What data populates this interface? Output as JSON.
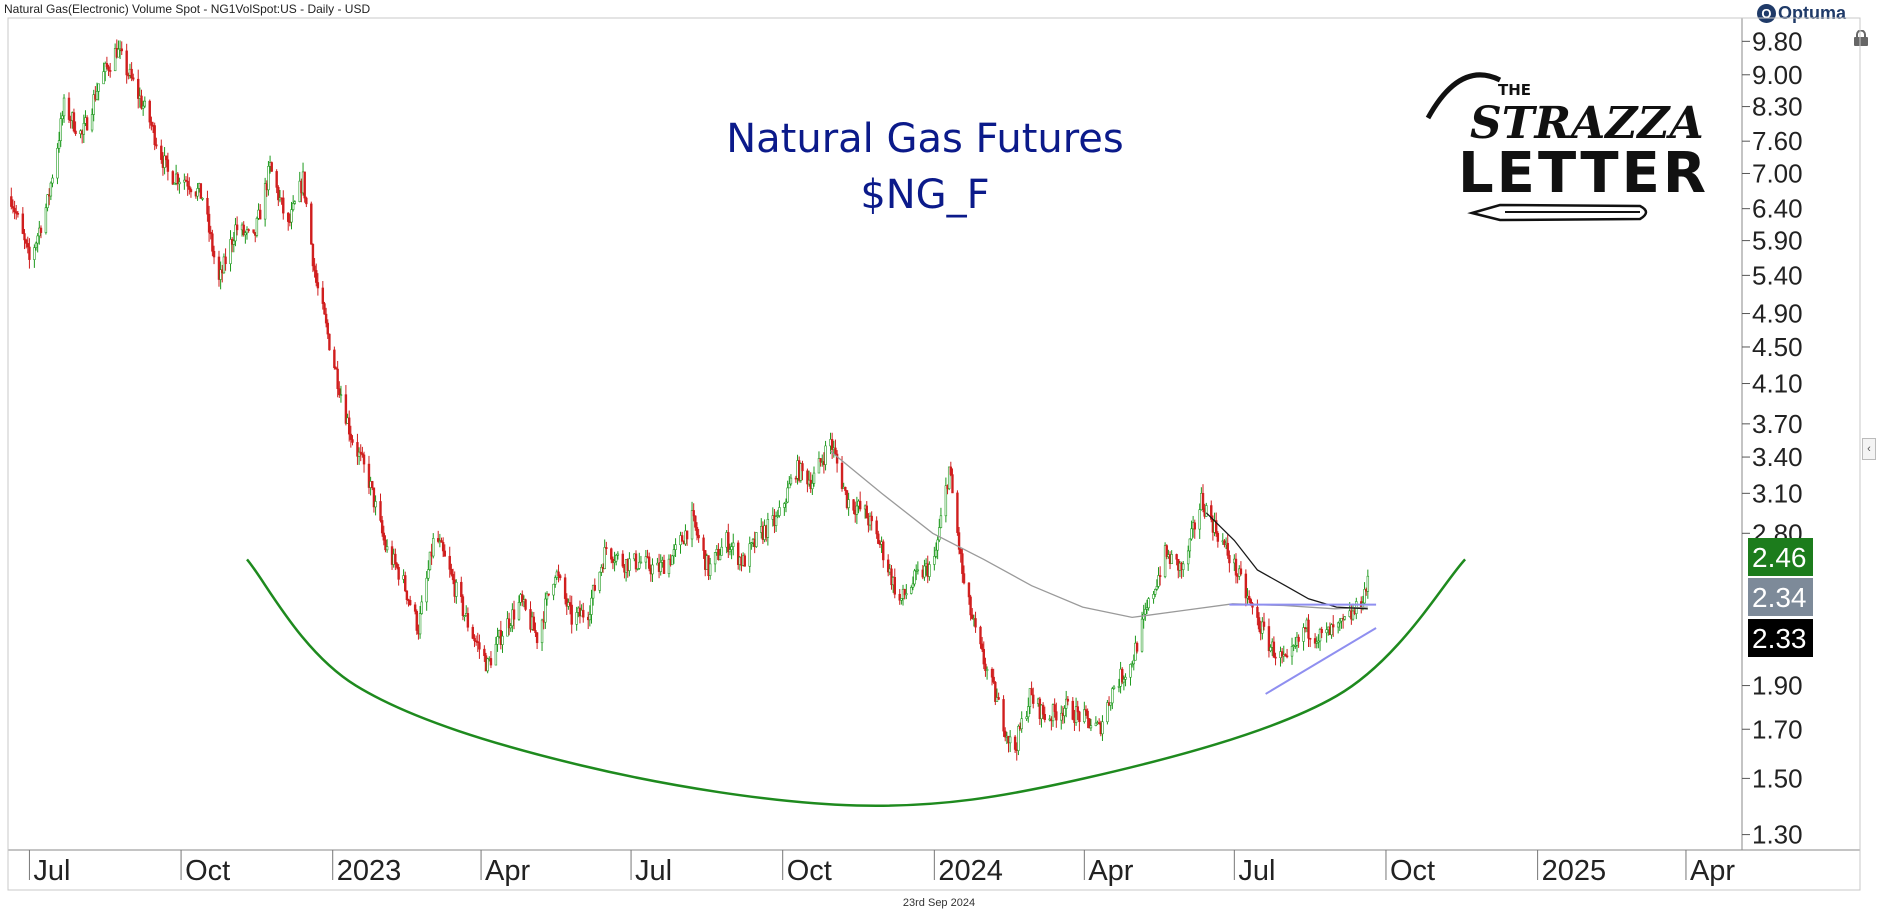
{
  "header": {
    "title": "Natural Gas(Electronic) Volume Spot - NG1VolSpot:US - Daily - USD"
  },
  "brand": {
    "name": "Optuma",
    "mark": "O"
  },
  "logo": {
    "line1": "THE",
    "line2": "STRAZZA",
    "line3": "LETTER"
  },
  "footer": {
    "date": "23rd Sep 2024"
  },
  "chart_data": {
    "type": "candlestick",
    "title": "Natural Gas Futures",
    "subtitle": "$NG_F",
    "y_scale": "log",
    "ylim": [
      1.25,
      10.4
    ],
    "y_ticks": [
      {
        "v": 9.8,
        "label": "9.80"
      },
      {
        "v": 9.0,
        "label": "9.00"
      },
      {
        "v": 8.3,
        "label": "8.30"
      },
      {
        "v": 7.6,
        "label": "7.60"
      },
      {
        "v": 7.0,
        "label": "7.00"
      },
      {
        "v": 6.4,
        "label": "6.40"
      },
      {
        "v": 5.9,
        "label": "5.90"
      },
      {
        "v": 5.4,
        "label": "5.40"
      },
      {
        "v": 4.9,
        "label": "4.90"
      },
      {
        "v": 4.5,
        "label": "4.50"
      },
      {
        "v": 4.1,
        "label": "4.10"
      },
      {
        "v": 3.7,
        "label": "3.70"
      },
      {
        "v": 3.4,
        "label": "3.40"
      },
      {
        "v": 3.1,
        "label": "3.10"
      },
      {
        "v": 2.8,
        "label": "2.80"
      },
      {
        "v": 1.9,
        "label": "1.90"
      },
      {
        "v": 1.7,
        "label": "1.70"
      },
      {
        "v": 1.5,
        "label": "1.50"
      },
      {
        "v": 1.3,
        "label": "1.30"
      }
    ],
    "x_ticks": [
      {
        "date": "2022-07-01",
        "label": "Jul"
      },
      {
        "date": "2022-10-01",
        "label": "Oct"
      },
      {
        "date": "2023-01-01",
        "label": "2023"
      },
      {
        "date": "2023-04-01",
        "label": "Apr"
      },
      {
        "date": "2023-07-01",
        "label": "Jul"
      },
      {
        "date": "2023-10-01",
        "label": "Oct"
      },
      {
        "date": "2024-01-01",
        "label": "2024"
      },
      {
        "date": "2024-04-01",
        "label": "Apr"
      },
      {
        "date": "2024-07-01",
        "label": "Jul"
      },
      {
        "date": "2024-10-01",
        "label": "Oct"
      },
      {
        "date": "2025-01-01",
        "label": "2025"
      },
      {
        "date": "2025-04-01",
        "label": "Apr"
      }
    ],
    "xlim": [
      "2022-06-18",
      "2025-05-05"
    ],
    "price_path": [
      [
        "2022-06-20",
        6.6
      ],
      [
        "2022-07-01",
        5.6
      ],
      [
        "2022-07-12",
        6.5
      ],
      [
        "2022-07-22",
        8.3
      ],
      [
        "2022-08-02",
        7.7
      ],
      [
        "2022-08-12",
        8.8
      ],
      [
        "2022-08-23",
        9.6
      ],
      [
        "2022-09-02",
        8.8
      ],
      [
        "2022-09-12",
        8.0
      ],
      [
        "2022-09-23",
        7.0
      ],
      [
        "2022-10-04",
        6.9
      ],
      [
        "2022-10-14",
        6.6
      ],
      [
        "2022-10-24",
        5.3
      ],
      [
        "2022-11-03",
        6.1
      ],
      [
        "2022-11-14",
        5.9
      ],
      [
        "2022-11-24",
        7.1
      ],
      [
        "2022-12-05",
        6.1
      ],
      [
        "2022-12-14",
        6.9
      ],
      [
        "2022-12-22",
        5.3
      ],
      [
        "2023-01-02",
        4.3
      ],
      [
        "2023-01-12",
        3.6
      ],
      [
        "2023-01-23",
        3.2
      ],
      [
        "2023-02-02",
        2.7
      ],
      [
        "2023-02-12",
        2.5
      ],
      [
        "2023-02-22",
        2.2
      ],
      [
        "2023-03-04",
        2.8
      ],
      [
        "2023-03-14",
        2.5
      ],
      [
        "2023-03-25",
        2.2
      ],
      [
        "2023-04-05",
        2.0
      ],
      [
        "2023-04-15",
        2.2
      ],
      [
        "2023-04-25",
        2.35
      ],
      [
        "2023-05-05",
        2.15
      ],
      [
        "2023-05-16",
        2.55
      ],
      [
        "2023-05-26",
        2.25
      ],
      [
        "2023-06-05",
        2.3
      ],
      [
        "2023-06-16",
        2.7
      ],
      [
        "2023-06-26",
        2.6
      ],
      [
        "2023-07-07",
        2.6
      ],
      [
        "2023-07-17",
        2.55
      ],
      [
        "2023-07-27",
        2.65
      ],
      [
        "2023-08-07",
        2.9
      ],
      [
        "2023-08-17",
        2.55
      ],
      [
        "2023-08-28",
        2.75
      ],
      [
        "2023-09-07",
        2.6
      ],
      [
        "2023-09-18",
        2.8
      ],
      [
        "2023-09-28",
        2.9
      ],
      [
        "2023-10-09",
        3.3
      ],
      [
        "2023-10-19",
        3.2
      ],
      [
        "2023-10-30",
        3.55
      ],
      [
        "2023-11-09",
        3.05
      ],
      [
        "2023-11-20",
        2.95
      ],
      [
        "2023-11-30",
        2.7
      ],
      [
        "2023-12-11",
        2.35
      ],
      [
        "2023-12-21",
        2.5
      ],
      [
        "2024-01-01",
        2.6
      ],
      [
        "2024-01-10",
        3.3
      ],
      [
        "2024-01-19",
        2.45
      ],
      [
        "2024-01-28",
        2.1
      ],
      [
        "2024-02-07",
        1.85
      ],
      [
        "2024-02-18",
        1.6
      ],
      [
        "2024-02-28",
        1.85
      ],
      [
        "2024-03-09",
        1.75
      ],
      [
        "2024-03-20",
        1.8
      ],
      [
        "2024-03-31",
        1.75
      ],
      [
        "2024-04-10",
        1.7
      ],
      [
        "2024-04-19",
        1.9
      ],
      [
        "2024-04-29",
        2.0
      ],
      [
        "2024-05-09",
        2.3
      ],
      [
        "2024-05-20",
        2.65
      ],
      [
        "2024-05-31",
        2.55
      ],
      [
        "2024-06-11",
        3.05
      ],
      [
        "2024-06-21",
        2.8
      ],
      [
        "2024-07-02",
        2.55
      ],
      [
        "2024-07-12",
        2.3
      ],
      [
        "2024-07-23",
        2.1
      ],
      [
        "2024-08-02",
        2.0
      ],
      [
        "2024-08-13",
        2.2
      ],
      [
        "2024-08-23",
        2.15
      ],
      [
        "2024-09-03",
        2.2
      ],
      [
        "2024-09-13",
        2.3
      ],
      [
        "2024-09-20",
        2.46
      ]
    ],
    "moving_averages": [
      {
        "color": "#9a9a9a",
        "points": [
          [
            "2023-10-30",
            3.45
          ],
          [
            "2023-11-30",
            3.1
          ],
          [
            "2023-12-31",
            2.8
          ],
          [
            "2024-01-31",
            2.62
          ],
          [
            "2024-02-29",
            2.45
          ],
          [
            "2024-03-31",
            2.32
          ],
          [
            "2024-04-30",
            2.26
          ],
          [
            "2024-05-31",
            2.3
          ],
          [
            "2024-06-30",
            2.34
          ],
          [
            "2024-07-31",
            2.33
          ],
          [
            "2024-08-31",
            2.31
          ],
          [
            "2024-09-20",
            2.32
          ]
        ]
      },
      {
        "color": "#1a1a1a",
        "points": [
          [
            "2024-06-14",
            2.95
          ],
          [
            "2024-07-01",
            2.75
          ],
          [
            "2024-07-15",
            2.55
          ],
          [
            "2024-08-01",
            2.45
          ],
          [
            "2024-08-15",
            2.37
          ],
          [
            "2024-09-01",
            2.32
          ],
          [
            "2024-09-20",
            2.31
          ]
        ]
      }
    ],
    "annotations": {
      "rounded_bottom": {
        "color": "#1e8a1e",
        "points": [
          [
            "2022-11-10",
            2.62
          ],
          [
            "2023-01-15",
            1.9
          ],
          [
            "2023-06-01",
            1.55
          ],
          [
            "2023-11-15",
            1.4
          ],
          [
            "2024-04-01",
            1.5
          ],
          [
            "2024-09-01",
            1.85
          ],
          [
            "2024-11-18",
            2.62
          ]
        ]
      },
      "resistance_line": {
        "color": "#8f8ff0",
        "from": [
          "2024-06-28",
          2.335
        ],
        "to": [
          "2024-09-25",
          2.335
        ]
      },
      "support_line": {
        "color": "#8f8ff0",
        "from": [
          "2024-07-20",
          1.86
        ],
        "to": [
          "2024-09-25",
          2.2
        ]
      }
    },
    "price_badges": [
      {
        "v": 2.46,
        "label": "2.46",
        "color": "#1c7c1c"
      },
      {
        "v": 2.34,
        "label": "2.34",
        "color": "#7d8a99"
      },
      {
        "v": 2.33,
        "label": "2.33",
        "color": "#000000"
      }
    ],
    "up_color": "#1e9a1e",
    "down_color": "#d01e1e",
    "grid": false
  }
}
